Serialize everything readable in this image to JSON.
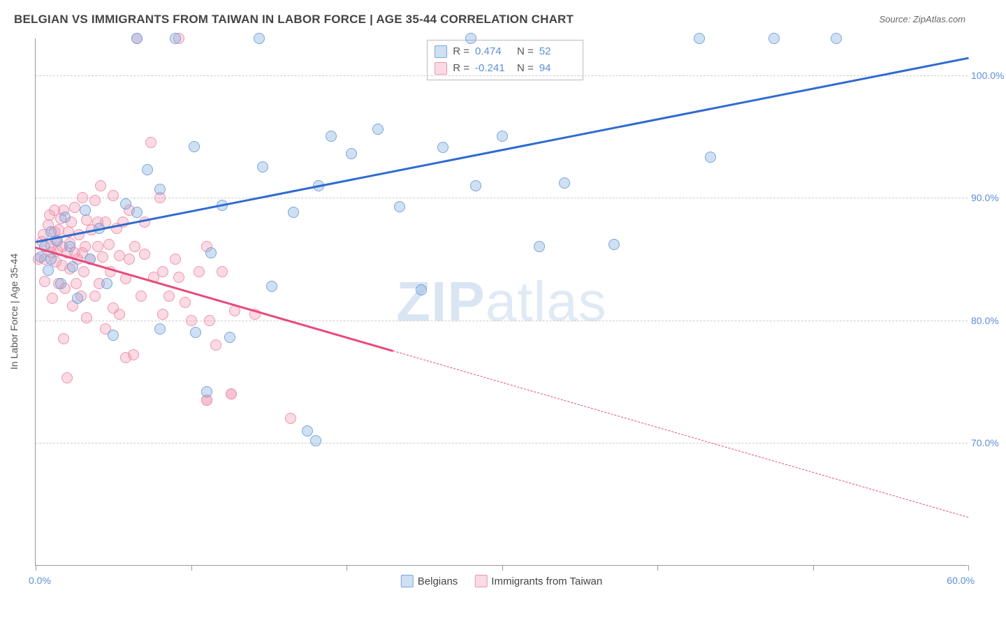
{
  "title": "BELGIAN VS IMMIGRANTS FROM TAIWAN IN LABOR FORCE | AGE 35-44 CORRELATION CHART",
  "source": "Source: ZipAtlas.com",
  "watermark_a": "ZIP",
  "watermark_b": "atlas",
  "chart": {
    "type": "scatter",
    "xlim": [
      0,
      60
    ],
    "ylim": [
      60,
      103
    ],
    "yticks": [
      70,
      80,
      90,
      100
    ],
    "ytick_labels": [
      "70.0%",
      "80.0%",
      "90.0%",
      "100.0%"
    ],
    "xticks": [
      0,
      10,
      20,
      30,
      40,
      50,
      60
    ],
    "xlabel_0": "0.0%",
    "xlabel_60": "60.0%",
    "ylabel": "In Labor Force | Age 35-44",
    "grid_color": "#cccccc",
    "background_color": "#ffffff",
    "point_radius": 8,
    "series": [
      {
        "name": "Belgians",
        "color_fill": "rgba(120,165,220,0.35)",
        "color_stroke": "#7aa5dc",
        "trend_color": "#2e6bd1",
        "trend": {
          "x1": 0,
          "y1": 86.5,
          "x2": 60,
          "y2": 101.5,
          "x_solid_end": 60
        },
        "R": "0.474",
        "N": "52",
        "points": [
          [
            0.3,
            85.2
          ],
          [
            0.6,
            86.0
          ],
          [
            0.8,
            84.1
          ],
          [
            1.0,
            87.2
          ],
          [
            1.0,
            85.0
          ],
          [
            1.4,
            86.5
          ],
          [
            1.6,
            83.0
          ],
          [
            1.9,
            88.4
          ],
          [
            2.2,
            86.0
          ],
          [
            2.4,
            84.4
          ],
          [
            2.7,
            81.8
          ],
          [
            3.2,
            89.0
          ],
          [
            3.5,
            85.0
          ],
          [
            4.1,
            87.5
          ],
          [
            4.6,
            83.0
          ],
          [
            5.0,
            78.8
          ],
          [
            5.8,
            89.5
          ],
          [
            6.5,
            88.8
          ],
          [
            6.5,
            103.0
          ],
          [
            7.2,
            92.3
          ],
          [
            8.0,
            90.7
          ],
          [
            8.0,
            79.3
          ],
          [
            9.0,
            103.0
          ],
          [
            10.2,
            94.2
          ],
          [
            10.3,
            79.0
          ],
          [
            11.0,
            74.2
          ],
          [
            11.3,
            85.5
          ],
          [
            12.0,
            89.4
          ],
          [
            12.5,
            78.6
          ],
          [
            14.4,
            103.0
          ],
          [
            14.6,
            92.5
          ],
          [
            15.2,
            82.8
          ],
          [
            16.6,
            88.8
          ],
          [
            18.0,
            70.2
          ],
          [
            18.2,
            91.0
          ],
          [
            19.0,
            95.0
          ],
          [
            20.3,
            93.6
          ],
          [
            22.0,
            95.6
          ],
          [
            23.4,
            89.3
          ],
          [
            24.8,
            82.5
          ],
          [
            26.2,
            94.1
          ],
          [
            28.0,
            103.0
          ],
          [
            28.3,
            91.0
          ],
          [
            30.0,
            95.0
          ],
          [
            32.4,
            86.0
          ],
          [
            34.0,
            91.2
          ],
          [
            37.2,
            86.2
          ],
          [
            42.7,
            103.0
          ],
          [
            43.4,
            93.3
          ],
          [
            47.5,
            103.0
          ],
          [
            51.5,
            103.0
          ],
          [
            17.5,
            71.0
          ]
        ]
      },
      {
        "name": "Immigrants from Taiwan",
        "color_fill": "rgba(240,150,175,0.35)",
        "color_stroke": "#ef95ae",
        "trend_color": "#e84a7a",
        "trend": {
          "x1": 0,
          "y1": 86.0,
          "x2": 60,
          "y2": 64.0,
          "x_solid_end": 23
        },
        "R": "-0.241",
        "N": "94",
        "points": [
          [
            0.2,
            85.0
          ],
          [
            0.4,
            86.4
          ],
          [
            0.5,
            87.0
          ],
          [
            0.6,
            85.0
          ],
          [
            0.6,
            83.2
          ],
          [
            0.8,
            87.8
          ],
          [
            0.9,
            88.6
          ],
          [
            1.0,
            86.0
          ],
          [
            1.0,
            85.6
          ],
          [
            1.1,
            81.8
          ],
          [
            1.2,
            87.2
          ],
          [
            1.2,
            89.0
          ],
          [
            1.3,
            86.5
          ],
          [
            1.3,
            84.8
          ],
          [
            1.4,
            85.7
          ],
          [
            1.5,
            83.0
          ],
          [
            1.5,
            87.4
          ],
          [
            1.6,
            88.3
          ],
          [
            1.7,
            86.0
          ],
          [
            1.7,
            84.5
          ],
          [
            1.8,
            78.5
          ],
          [
            1.8,
            89.0
          ],
          [
            1.9,
            82.6
          ],
          [
            2.0,
            85.5
          ],
          [
            2.0,
            75.3
          ],
          [
            2.1,
            87.2
          ],
          [
            2.2,
            86.3
          ],
          [
            2.2,
            84.2
          ],
          [
            2.3,
            88.0
          ],
          [
            2.4,
            81.2
          ],
          [
            2.5,
            85.5
          ],
          [
            2.5,
            89.2
          ],
          [
            2.6,
            83.0
          ],
          [
            2.7,
            85.0
          ],
          [
            2.8,
            87.0
          ],
          [
            2.9,
            82.0
          ],
          [
            3.0,
            90.0
          ],
          [
            3.0,
            85.5
          ],
          [
            3.1,
            84.0
          ],
          [
            3.2,
            86.0
          ],
          [
            3.3,
            88.2
          ],
          [
            3.3,
            80.2
          ],
          [
            3.5,
            85.0
          ],
          [
            3.6,
            87.4
          ],
          [
            3.8,
            82.0
          ],
          [
            3.8,
            89.8
          ],
          [
            4.0,
            86.0
          ],
          [
            4.0,
            88.0
          ],
          [
            4.1,
            83.0
          ],
          [
            4.2,
            91.0
          ],
          [
            4.3,
            85.2
          ],
          [
            4.5,
            88.0
          ],
          [
            4.5,
            79.3
          ],
          [
            4.7,
            86.2
          ],
          [
            4.8,
            84.0
          ],
          [
            5.0,
            90.2
          ],
          [
            5.0,
            81.0
          ],
          [
            5.2,
            87.5
          ],
          [
            5.4,
            80.5
          ],
          [
            5.4,
            85.3
          ],
          [
            5.6,
            88.0
          ],
          [
            5.8,
            83.4
          ],
          [
            5.8,
            77.0
          ],
          [
            6.0,
            89.0
          ],
          [
            6.0,
            85.0
          ],
          [
            6.3,
            77.2
          ],
          [
            6.4,
            86.0
          ],
          [
            6.5,
            103.0
          ],
          [
            6.8,
            82.0
          ],
          [
            7.0,
            85.4
          ],
          [
            7.0,
            88.0
          ],
          [
            7.4,
            94.5
          ],
          [
            7.6,
            83.5
          ],
          [
            8.0,
            90.0
          ],
          [
            8.2,
            80.5
          ],
          [
            8.2,
            84.0
          ],
          [
            8.6,
            82.0
          ],
          [
            9.0,
            85.0
          ],
          [
            9.2,
            103.0
          ],
          [
            9.2,
            83.5
          ],
          [
            9.6,
            81.5
          ],
          [
            10.0,
            80.0
          ],
          [
            10.5,
            84.0
          ],
          [
            11.0,
            73.5
          ],
          [
            11.0,
            86.0
          ],
          [
            11.0,
            73.5
          ],
          [
            11.2,
            80.0
          ],
          [
            11.6,
            78.0
          ],
          [
            12.0,
            84.0
          ],
          [
            12.6,
            74.0
          ],
          [
            12.6,
            74.0
          ],
          [
            12.8,
            80.8
          ],
          [
            14.1,
            80.5
          ],
          [
            16.4,
            72.0
          ]
        ]
      }
    ]
  },
  "legend_bottom": {
    "series1": "Belgians",
    "series2": "Immigrants from Taiwan"
  }
}
